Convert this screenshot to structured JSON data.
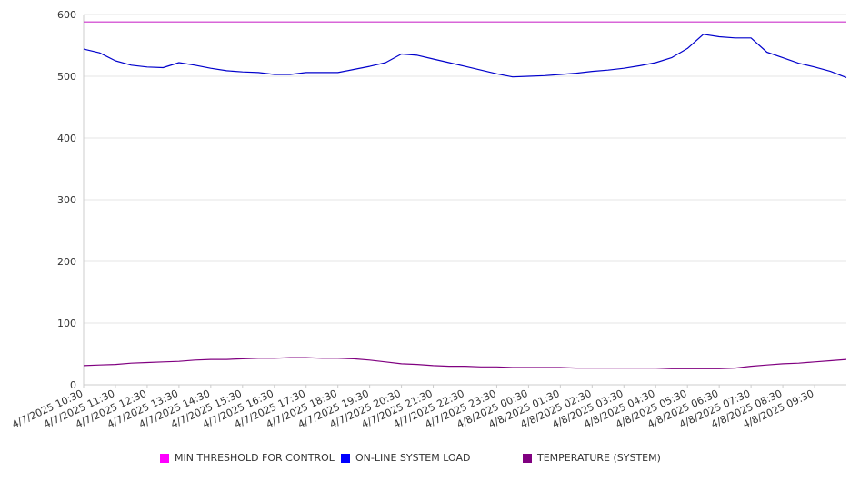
{
  "chart_data": {
    "type": "line",
    "title": "",
    "xlabel": "",
    "ylabel": "",
    "ylim": [
      0,
      600
    ],
    "yticks": [
      0,
      100,
      200,
      300,
      400,
      500,
      600
    ],
    "grid": true,
    "legend_position": "bottom",
    "x_tick_labels": [
      "4/7/2025 10:30",
      "4/7/2025 11:30",
      "4/7/2025 12:30",
      "4/7/2025 13:30",
      "4/7/2025 14:30",
      "4/7/2025 15:30",
      "4/7/2025 16:30",
      "4/7/2025 17:30",
      "4/7/2025 18:30",
      "4/7/2025 19:30",
      "4/7/2025 20:30",
      "4/7/2025 21:30",
      "4/7/2025 22:30",
      "4/7/2025 23:30",
      "4/8/2025 00:30",
      "4/8/2025 01:30",
      "4/8/2025 02:30",
      "4/8/2025 03:30",
      "4/8/2025 04:30",
      "4/8/2025 05:30",
      "4/8/2025 06:30",
      "4/8/2025 07:30",
      "4/8/2025 08:30",
      "4/8/2025 09:30"
    ],
    "x": [
      "4/7/2025 10:30",
      "4/7/2025 11:00",
      "4/7/2025 11:30",
      "4/7/2025 12:00",
      "4/7/2025 12:30",
      "4/7/2025 13:00",
      "4/7/2025 13:30",
      "4/7/2025 14:00",
      "4/7/2025 14:30",
      "4/7/2025 15:00",
      "4/7/2025 15:30",
      "4/7/2025 16:00",
      "4/7/2025 16:30",
      "4/7/2025 17:00",
      "4/7/2025 17:30",
      "4/7/2025 18:00",
      "4/7/2025 18:30",
      "4/7/2025 19:00",
      "4/7/2025 19:30",
      "4/7/2025 20:00",
      "4/7/2025 20:30",
      "4/7/2025 21:00",
      "4/7/2025 21:30",
      "4/7/2025 22:00",
      "4/7/2025 22:30",
      "4/7/2025 23:00",
      "4/7/2025 23:30",
      "4/8/2025 00:00",
      "4/8/2025 00:30",
      "4/8/2025 01:00",
      "4/8/2025 01:30",
      "4/8/2025 02:00",
      "4/8/2025 02:30",
      "4/8/2025 03:00",
      "4/8/2025 03:30",
      "4/8/2025 04:00",
      "4/8/2025 04:30",
      "4/8/2025 05:00",
      "4/8/2025 05:30",
      "4/8/2025 06:00",
      "4/8/2025 06:30",
      "4/8/2025 07:00",
      "4/8/2025 07:30",
      "4/8/2025 08:00",
      "4/8/2025 08:30",
      "4/8/2025 09:00",
      "4/8/2025 09:30",
      "4/8/2025 10:00",
      "4/8/2025 10:30"
    ],
    "series": [
      {
        "name": "MIN THRESHOLD FOR CONTROL",
        "color": "#cc33cc",
        "values": [
          588,
          588,
          588,
          588,
          588,
          588,
          588,
          588,
          588,
          588,
          588,
          588,
          588,
          588,
          588,
          588,
          588,
          588,
          588,
          588,
          588,
          588,
          588,
          588,
          588,
          588,
          588,
          588,
          588,
          588,
          588,
          588,
          588,
          588,
          588,
          588,
          588,
          588,
          588,
          588,
          588,
          588,
          588,
          588,
          588,
          588,
          588,
          588,
          588
        ]
      },
      {
        "name": "ON-LINE SYSTEM LOAD",
        "color": "#0000cc",
        "values": [
          544,
          538,
          525,
          518,
          515,
          514,
          522,
          518,
          513,
          509,
          507,
          506,
          503,
          503,
          506,
          506,
          506,
          511,
          516,
          522,
          536,
          534,
          528,
          522,
          516,
          510,
          504,
          499,
          500,
          501,
          503,
          505,
          508,
          510,
          513,
          517,
          522,
          530,
          545,
          568,
          564,
          562,
          562,
          539,
          530,
          521,
          515,
          508,
          498
        ]
      },
      {
        "name": "TEMPERATURE (SYSTEM)",
        "color": "#800080",
        "values": [
          31,
          32,
          33,
          35,
          36,
          37,
          38,
          40,
          41,
          41,
          42,
          43,
          43,
          44,
          44,
          43,
          43,
          42,
          40,
          37,
          34,
          33,
          31,
          30,
          30,
          29,
          29,
          28,
          28,
          28,
          28,
          27,
          27,
          27,
          27,
          27,
          27,
          26,
          26,
          26,
          26,
          27,
          30,
          32,
          34,
          35,
          37,
          39,
          41
        ]
      }
    ]
  }
}
